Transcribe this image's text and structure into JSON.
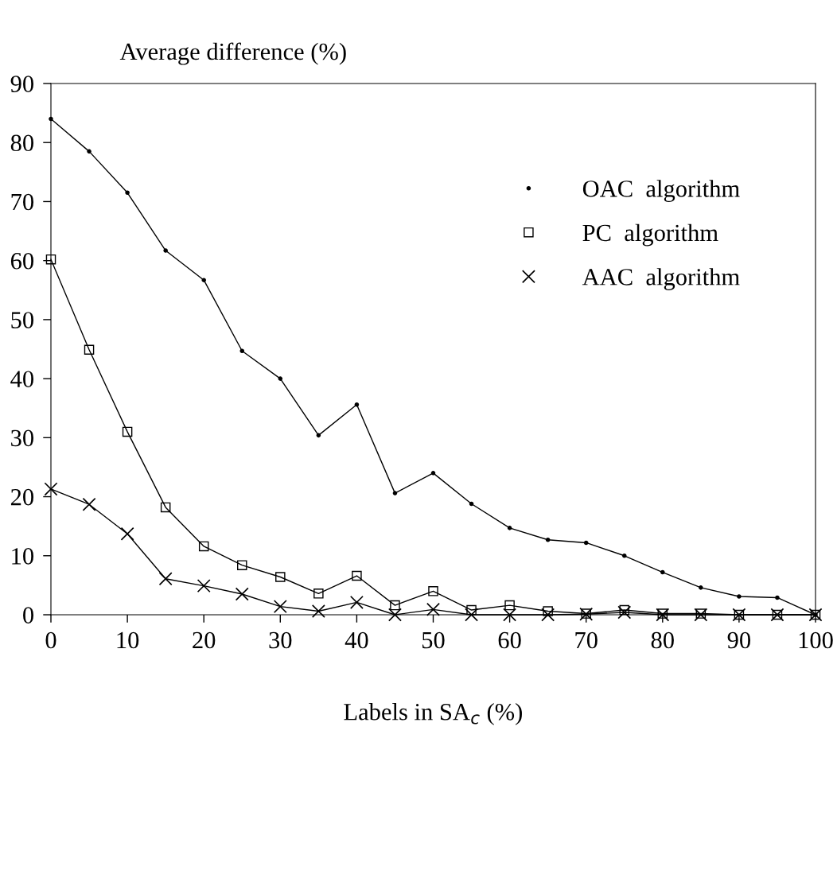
{
  "chart_data": {
    "type": "line",
    "xlabel": "Labels in SA$_{c}$ (%)",
    "ylabel": "Average difference (%)",
    "x": [
      0,
      5,
      10,
      15,
      20,
      25,
      30,
      35,
      40,
      45,
      50,
      55,
      60,
      65,
      70,
      75,
      80,
      85,
      90,
      95,
      100
    ],
    "xlim": [
      0,
      100
    ],
    "xticks": [
      0,
      10,
      20,
      30,
      40,
      50,
      60,
      70,
      80,
      90,
      100
    ],
    "ylim": [
      0,
      90
    ],
    "yticks": [
      0,
      10,
      20,
      30,
      40,
      50,
      60,
      70,
      80,
      90
    ],
    "grid": false,
    "legend": "top right",
    "line_style": "solid",
    "series": [
      {
        "name": "OAC  algorithm",
        "color": "#000000",
        "marker": "circle",
        "values": [
          84,
          78.5,
          71.5,
          61.7,
          56.7,
          44.7,
          40,
          30.4,
          35.6,
          20.6,
          24,
          18.8,
          14.7,
          12.7,
          12.2,
          10,
          7.2,
          4.6,
          3.1,
          2.9,
          0
        ]
      },
      {
        "name": "PC  algorithm",
        "color": "#000000",
        "marker": "square",
        "values": [
          60.2,
          44.9,
          31,
          18.2,
          11.6,
          8.4,
          6.4,
          3.6,
          6.6,
          1.6,
          4,
          0.8,
          1.6,
          0.6,
          0.2,
          0.8,
          0.2,
          0.2,
          0,
          0,
          0
        ]
      },
      {
        "name": "AAC  algorithm",
        "color": "#000000",
        "marker": "cross",
        "values": [
          21.3,
          18.7,
          13.7,
          6.1,
          4.9,
          3.5,
          1.4,
          0.6,
          2.1,
          0,
          0.9,
          0,
          0,
          0,
          0.1,
          0.4,
          0,
          0,
          0,
          0,
          0
        ]
      }
    ]
  }
}
